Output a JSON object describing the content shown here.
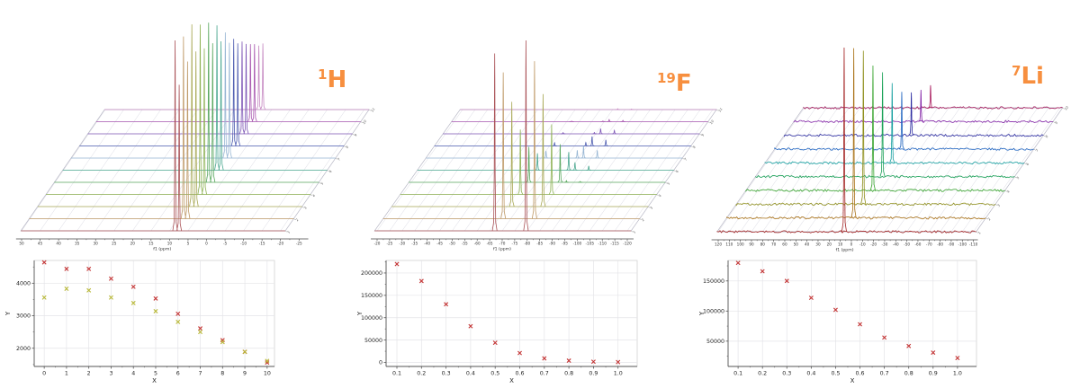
{
  "app": {
    "background": "#ffffff",
    "accent_color": "#f78f3f"
  },
  "titles": [
    {
      "isotope_mass": "1",
      "element": "H",
      "color": "#f78f3f"
    },
    {
      "isotope_mass": "19",
      "element": "F",
      "color": "#f78f3f"
    },
    {
      "isotope_mass": "7",
      "element": "Li",
      "color": "#f78f3f"
    }
  ],
  "chart_data": [
    {
      "type": "line",
      "subtype": "nmr-waterfall-stack",
      "panel": "1H",
      "xlabel": "f1 (ppm)",
      "x_ticks": [
        50,
        45,
        40,
        35,
        30,
        25,
        20,
        15,
        10,
        5,
        0,
        -5,
        -10,
        -15,
        -20,
        -25
      ],
      "x_axis_range": [
        51.5,
        -27.5
      ],
      "grid_range": [
        50.2,
        -21.3
      ],
      "n_traces": 11,
      "trace_labels": [
        "1",
        "2",
        "3",
        "4",
        "5",
        "6",
        "7",
        "8",
        "9",
        "10",
        "11"
      ],
      "trace_colors": [
        "#aa5257",
        "#bf9a68",
        "#a8a855",
        "#8fb255",
        "#5aa85f",
        "#4ba890",
        "#97b6d4",
        "#4d5cb0",
        "#7e57b6",
        "#a958b0",
        "#c689c2"
      ],
      "noise": 0,
      "peaks": [
        {
          "ppm": 8.5,
          "heights_by_trace": [
            4640,
            4440,
            4440,
            4140,
            3890,
            3530,
            3060,
            2610,
            2250,
            1890,
            1560
          ]
        },
        {
          "ppm": 7.4,
          "heights_by_trace": [
            3560,
            3830,
            3780,
            3560,
            3390,
            3140,
            2810,
            2500,
            2190,
            1890,
            1610
          ]
        }
      ]
    },
    {
      "type": "scatter",
      "panel": "1H",
      "xlabel": "X",
      "ylabel": "Y",
      "x": [
        0,
        1,
        2,
        3,
        4,
        5,
        6,
        7,
        8,
        9,
        10
      ],
      "x_ticks": [
        0,
        1,
        2,
        3,
        4,
        5,
        6,
        7,
        8,
        9,
        10
      ],
      "x_tick_labels": [
        "0",
        "1",
        "2",
        "3",
        "4",
        "5",
        "6",
        "7",
        "8",
        "9",
        "10"
      ],
      "y_ticks": [
        2000,
        3000,
        4000
      ],
      "xlim": [
        -0.45,
        10.33
      ],
      "ylim": [
        1440,
        4700
      ],
      "grid": true,
      "series": [
        {
          "name": "peak-8.5ppm-integral",
          "marker": "x",
          "color": "#c43535",
          "values": [
            4640,
            4440,
            4440,
            4140,
            3890,
            3530,
            3060,
            2610,
            2250,
            1890,
            1560
          ]
        },
        {
          "name": "peak-7.4ppm-integral",
          "marker": "x",
          "color": "#b9b93a",
          "values": [
            3560,
            3830,
            3780,
            3560,
            3390,
            3140,
            2810,
            2500,
            2190,
            1890,
            1610
          ]
        }
      ]
    },
    {
      "type": "line",
      "subtype": "nmr-waterfall-stack",
      "panel": "19F",
      "xlabel": "f1 (ppm)",
      "x_ticks": [
        -20,
        -25,
        -30,
        -35,
        -40,
        -45,
        -50,
        -55,
        -60,
        -65,
        -70,
        -75,
        -80,
        -85,
        -90,
        -95,
        -100,
        -105,
        -110,
        -115,
        -120
      ],
      "x_axis_range": [
        -17.5,
        -122.5
      ],
      "grid_range": [
        -19,
        -121.5
      ],
      "n_traces": 11,
      "trace_labels": [
        "1",
        "2",
        "3",
        "4",
        "5",
        "6",
        "7",
        "8",
        "9",
        "10",
        "11"
      ],
      "trace_colors": [
        "#aa5257",
        "#bf9a68",
        "#a8a855",
        "#8fb255",
        "#5aa85f",
        "#4ba890",
        "#97b6d4",
        "#4d5cb0",
        "#7e57b6",
        "#a958b0",
        "#c689c2"
      ],
      "noise": 0,
      "peaks": [
        {
          "ppm": -67,
          "heights_by_trace": [
            205000,
            169000,
            121000,
            75000,
            41000,
            19500,
            8400,
            3700,
            1400,
            740,
            370
          ]
        },
        {
          "ppm": -79.5,
          "heights_by_trace": [
            220000,
            182000,
            130000,
            81000,
            44000,
            21000,
            9000,
            4000,
            1500,
            800,
            400
          ]
        },
        {
          "ppm": -82,
          "heights_by_trace": [
            0,
            0,
            0,
            0,
            2000,
            9000,
            14000,
            11000,
            6000,
            2500,
            1000
          ]
        },
        {
          "ppm": -87.5,
          "heights_by_trace": [
            0,
            0,
            0,
            0,
            1000,
            5000,
            9000,
            7000,
            4000,
            1500,
            600
          ]
        }
      ]
    },
    {
      "type": "scatter",
      "panel": "19F",
      "xlabel": "X",
      "ylabel": "Y",
      "x": [
        0.1,
        0.2,
        0.3,
        0.4,
        0.5,
        0.6,
        0.7,
        0.8,
        0.9,
        1.0
      ],
      "x_ticks": [
        0.1,
        0.2,
        0.3,
        0.4,
        0.5,
        0.6,
        0.7,
        0.8,
        0.9,
        1.0
      ],
      "x_tick_labels": [
        "0.1",
        "0.2",
        "0.3",
        "0.4",
        "0.5",
        "0.6",
        "0.7",
        "0.8",
        "0.9",
        "1.0"
      ],
      "y_ticks": [
        0,
        50000,
        100000,
        150000,
        200000
      ],
      "xlim": [
        0.056,
        1.078
      ],
      "ylim": [
        -9000,
        228000
      ],
      "grid": true,
      "series": [
        {
          "name": "peak-integral-decay",
          "marker": "x",
          "color": "#c43535",
          "values": [
            220000,
            182000,
            130000,
            81000,
            44000,
            21000,
            9000,
            4000,
            1500,
            800
          ]
        }
      ]
    },
    {
      "type": "line",
      "subtype": "nmr-waterfall-stack",
      "panel": "7Li",
      "xlabel": "f1 (ppm)",
      "x_ticks": [
        120,
        110,
        100,
        90,
        80,
        70,
        60,
        50,
        40,
        30,
        20,
        10,
        0,
        -10,
        -20,
        -30,
        -40,
        -50,
        -60,
        -70,
        -80,
        -90,
        -100,
        -110
      ],
      "x_axis_range": [
        126,
        -114
      ],
      "grid_range": [
        121,
        -112.5
      ],
      "n_traces": 10,
      "trace_labels": [
        "1",
        "2",
        "3",
        "4",
        "5",
        "6",
        "7",
        "8",
        "9",
        "10"
      ],
      "trace_colors": [
        "#a32222",
        "#aa7217",
        "#8f8f1b",
        "#36a32c",
        "#1aa257",
        "#16a0a0",
        "#1f64c0",
        "#2b2ba0",
        "#8526a8",
        "#a81a5c"
      ],
      "noise": 1.3,
      "peaks": [
        {
          "ppm": 6.5,
          "heights_by_trace": [
            180000,
            166000,
            150000,
            122000,
            102000,
            78000,
            56000,
            42000,
            31000,
            22000
          ]
        }
      ]
    },
    {
      "type": "scatter",
      "panel": "7Li",
      "xlabel": "X",
      "ylabel": "Y",
      "x": [
        0.1,
        0.2,
        0.3,
        0.4,
        0.5,
        0.6,
        0.7,
        0.8,
        0.9,
        1.0
      ],
      "x_ticks": [
        0.1,
        0.2,
        0.3,
        0.4,
        0.5,
        0.6,
        0.7,
        0.8,
        0.9,
        1.0
      ],
      "x_tick_labels": [
        "0.1",
        "0.2",
        "0.3",
        "0.4",
        "0.5",
        "0.6",
        "0.7",
        "0.8",
        "0.9",
        "1.0"
      ],
      "y_ticks": [
        50000,
        100000,
        150000
      ],
      "xlim": [
        0.059,
        1.078
      ],
      "ylim": [
        8000,
        184000
      ],
      "grid": true,
      "series": [
        {
          "name": "peak-integral-decay",
          "marker": "x",
          "color": "#c43535",
          "values": [
            180000,
            166000,
            150000,
            122000,
            102000,
            78000,
            56000,
            42000,
            31000,
            22000
          ]
        }
      ]
    }
  ]
}
